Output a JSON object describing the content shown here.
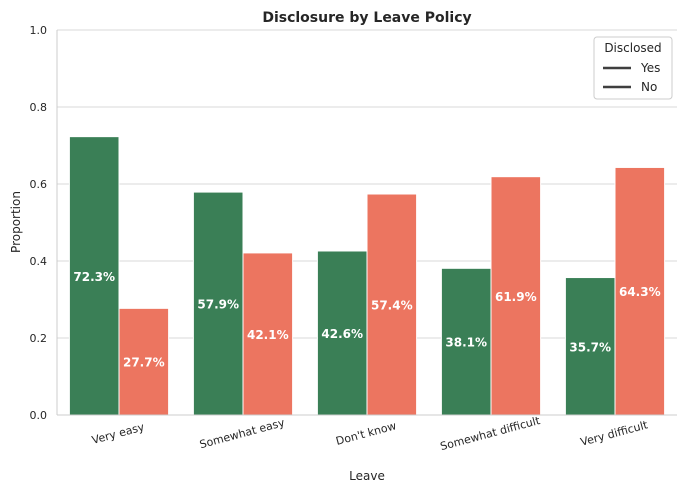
{
  "chart_data": {
    "type": "bar",
    "title": "Disclosure by Leave Policy",
    "xlabel": "Leave",
    "ylabel": "Proportion",
    "ylim": [
      0,
      1.0
    ],
    "yticks": [
      "0.0",
      "0.2",
      "0.4",
      "0.6",
      "0.8",
      "1.0"
    ],
    "grid": true,
    "categories": [
      "Very easy",
      "Somewhat easy",
      "Don't know",
      "Somewhat difficult",
      "Very difficult"
    ],
    "series": [
      {
        "name": "Yes",
        "color": "#3a7f56",
        "values": [
          0.723,
          0.579,
          0.426,
          0.381,
          0.357
        ],
        "labels": [
          "72.3%",
          "57.9%",
          "42.6%",
          "38.1%",
          "35.7%"
        ]
      },
      {
        "name": "No",
        "color": "#ec7560",
        "values": [
          0.277,
          0.421,
          0.574,
          0.619,
          0.643
        ],
        "labels": [
          "27.7%",
          "42.1%",
          "57.4%",
          "61.9%",
          "64.3%"
        ]
      }
    ],
    "legend": {
      "title": "Disclosed",
      "placement": "top-right"
    }
  }
}
